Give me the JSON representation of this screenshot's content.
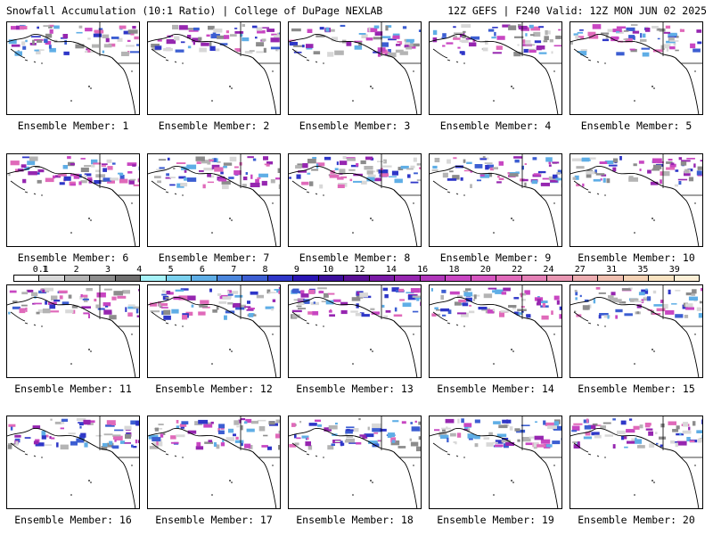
{
  "header": {
    "left_title": "Snowfall Accumulation (10:1 Ratio) | College of DuPage NEXLAB",
    "right_title": "12Z GEFS | F240 Valid: 12Z MON JUN 02 2025"
  },
  "panels": [
    {
      "label": "Ensemble Member: 1"
    },
    {
      "label": "Ensemble Member: 2"
    },
    {
      "label": "Ensemble Member: 3"
    },
    {
      "label": "Ensemble Member: 4"
    },
    {
      "label": "Ensemble Member: 5"
    },
    {
      "label": "Ensemble Member: 6"
    },
    {
      "label": "Ensemble Member: 7"
    },
    {
      "label": "Ensemble Member: 8"
    },
    {
      "label": "Ensemble Member: 9"
    },
    {
      "label": "Ensemble Member: 10"
    },
    {
      "label": "Ensemble Member: 11"
    },
    {
      "label": "Ensemble Member: 12"
    },
    {
      "label": "Ensemble Member: 13"
    },
    {
      "label": "Ensemble Member: 14"
    },
    {
      "label": "Ensemble Member: 15"
    },
    {
      "label": "Ensemble Member: 16"
    },
    {
      "label": "Ensemble Member: 17"
    },
    {
      "label": "Ensemble Member: 18"
    },
    {
      "label": "Ensemble Member: 19"
    },
    {
      "label": "Ensemble Member: 20"
    }
  ],
  "colorbar": {
    "ticks": [
      "0.1",
      "1",
      "2",
      "3",
      "4",
      "5",
      "6",
      "7",
      "8",
      "9",
      "10",
      "12",
      "14",
      "16",
      "18",
      "20",
      "22",
      "24",
      "27",
      "31",
      "35",
      "39"
    ],
    "colors": [
      "#ffffff",
      "#d8d8d8",
      "#b4b4b4",
      "#8c8c8c",
      "#6e6e6e",
      "#a6f2f8",
      "#7bd1ee",
      "#5faee6",
      "#4b86dc",
      "#3c5ed2",
      "#2f37c8",
      "#2a15b4",
      "#3c0f9c",
      "#5a1096",
      "#7a1aa6",
      "#9626b0",
      "#b036ba",
      "#c846c2",
      "#d656c0",
      "#e06aba",
      "#e480b6",
      "#e896b2",
      "#ecacb0",
      "#f0c0b0",
      "#f4d2b4",
      "#f8e2c0",
      "#fcefd6"
    ]
  }
}
